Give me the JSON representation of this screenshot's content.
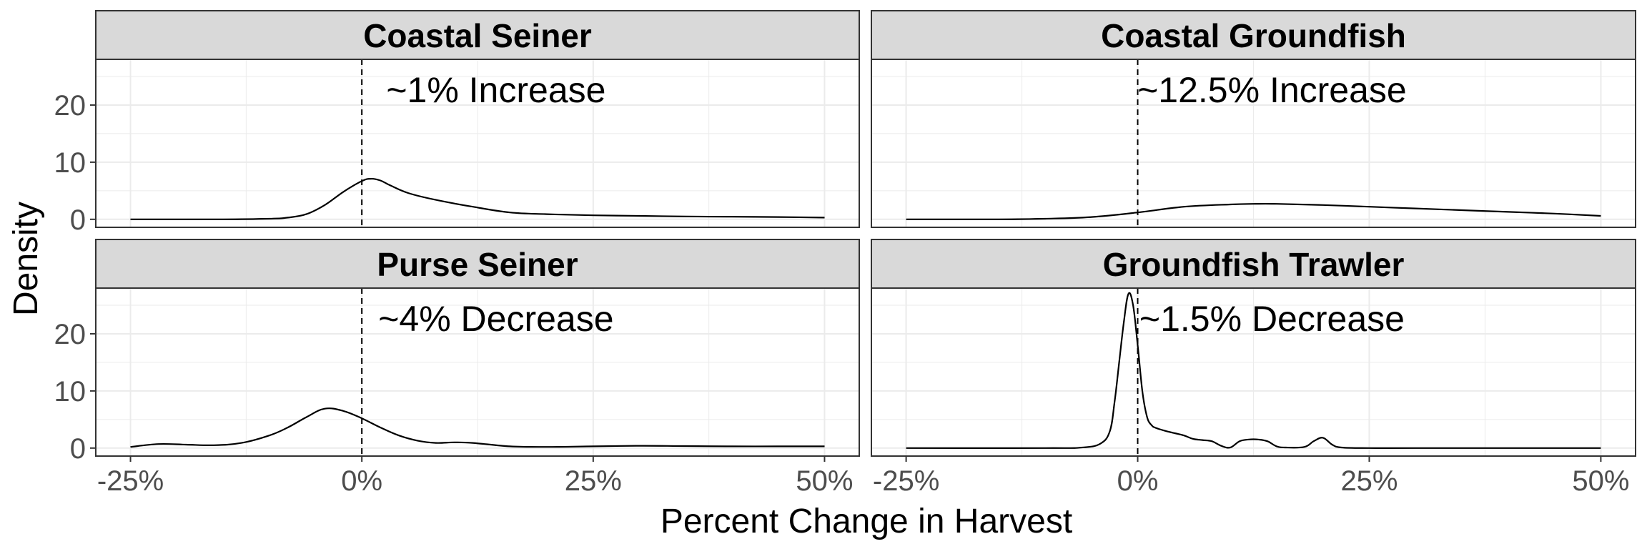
{
  "chart_data": {
    "type": "line",
    "facet_layout": "2x2",
    "xlabel": "Percent Change in Harvest",
    "ylabel": "Density",
    "xlim": [
      -25,
      50
    ],
    "ylim": [
      0,
      28
    ],
    "x_ticks": [
      "-25%",
      "0%",
      "25%",
      "50%"
    ],
    "x_tick_values": [
      -25,
      0,
      25,
      50
    ],
    "y_ticks": [
      "0",
      "10",
      "20"
    ],
    "y_tick_values": [
      0,
      10,
      20
    ],
    "reference_line": {
      "x": 0,
      "style": "dashed"
    },
    "grid": true,
    "colors": {
      "strip": "#d9d9d9",
      "line": "#000000",
      "grid": "#ebebeb",
      "border": "#333333"
    },
    "panels": [
      {
        "title": "Coastal Seiner",
        "annotation": "~1% Increase",
        "x": [
          -25,
          -15,
          -10,
          -8,
          -6,
          -4,
          -2,
          0,
          1,
          2,
          3,
          5,
          8,
          12,
          16,
          20,
          25,
          30,
          35,
          40,
          45,
          50
        ],
        "y": [
          0,
          0,
          0.1,
          0.3,
          0.9,
          2.5,
          4.8,
          6.7,
          7.1,
          6.8,
          6.0,
          4.6,
          3.4,
          2.2,
          1.2,
          0.9,
          0.7,
          0.6,
          0.5,
          0.45,
          0.4,
          0.3
        ]
      },
      {
        "title": "Coastal Groundfish",
        "annotation": "~12.5% Increase",
        "x": [
          -25,
          -15,
          -10,
          -5,
          0,
          5,
          10,
          12.5,
          15,
          20,
          25,
          30,
          35,
          40,
          45,
          50
        ],
        "y": [
          0,
          0,
          0.1,
          0.4,
          1.2,
          2.2,
          2.6,
          2.7,
          2.7,
          2.5,
          2.2,
          1.9,
          1.6,
          1.3,
          1.0,
          0.6
        ]
      },
      {
        "title": "Purse Seiner",
        "annotation": "~4% Decrease",
        "x": [
          -25,
          -22,
          -19,
          -16,
          -13,
          -10,
          -8,
          -6,
          -4,
          -2,
          0,
          2,
          4,
          6,
          8,
          10,
          12,
          16,
          20,
          25,
          30,
          35,
          40,
          45,
          50
        ],
        "y": [
          0.2,
          0.7,
          0.6,
          0.5,
          0.9,
          2.2,
          3.6,
          5.4,
          6.9,
          6.5,
          5.2,
          3.6,
          2.2,
          1.3,
          0.9,
          1.0,
          0.9,
          0.3,
          0.2,
          0.3,
          0.4,
          0.35,
          0.3,
          0.3,
          0.3
        ]
      },
      {
        "title": "Groundfish Trawler",
        "annotation": "~1.5% Decrease",
        "x": [
          -25,
          -10,
          -6,
          -4,
          -3,
          -2.5,
          -2,
          -1.5,
          -1,
          -0.5,
          0,
          0.5,
          1,
          1.5,
          2,
          3,
          4,
          5,
          6,
          7,
          8,
          9,
          10,
          11,
          12,
          13,
          14,
          15,
          16,
          18,
          19,
          20,
          21,
          22,
          25,
          30,
          40,
          50
        ],
        "y": [
          0,
          0,
          0.1,
          0.8,
          3,
          8,
          15,
          22,
          27,
          25,
          18,
          10,
          5.5,
          4,
          3.5,
          3.0,
          2.6,
          2.2,
          1.6,
          1.4,
          1.2,
          0.4,
          0.1,
          1.2,
          1.5,
          1.5,
          1.2,
          0.3,
          0.1,
          0.2,
          1.2,
          1.8,
          0.6,
          0.1,
          0,
          0,
          0,
          0
        ]
      }
    ]
  }
}
